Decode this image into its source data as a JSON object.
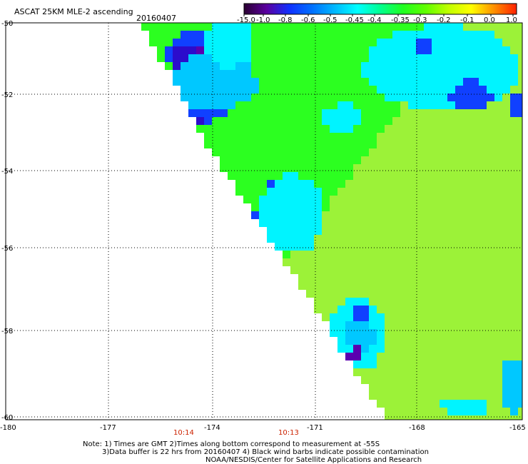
{
  "header": {
    "product": "ASCAT 25KM MLE-2 ascending",
    "date": "20160407"
  },
  "colorbar": {
    "labels": [
      "-15.0",
      "-1.0",
      "-0.8",
      "-0.6",
      "-0.5",
      "-0.45",
      "-0.4",
      "-0.35",
      "-0.3",
      "-0.2",
      "-0.1",
      "0.0",
      "1.0"
    ],
    "colors": [
      "#2a0030",
      "#5a00a0",
      "#1030ff",
      "#0070ff",
      "#00b8ff",
      "#00ffff",
      "#00ff90",
      "#20ff20",
      "#60ff00",
      "#c0ff00",
      "#ffff00",
      "#ff9000",
      "#ff2000"
    ]
  },
  "map": {
    "lat_labels": [
      "-50",
      "-52",
      "-54",
      "-56",
      "-58",
      "-60"
    ],
    "lon_labels": [
      "-180",
      "-177",
      "-174",
      "-171",
      "-168",
      "-165"
    ],
    "pass_times": [
      "10:14",
      "10:13"
    ],
    "palette": {
      "sea_green": "#2cff20",
      "light_green": "#9cf238",
      "cyan": "#00f4ff",
      "aqua": "#00ffd0",
      "sky": "#00c8ff",
      "blue": "#1040ff",
      "dark_blue": "#2c0ccc",
      "purple": "#5a00b0"
    }
  },
  "notes": [
    "Note: 1) Times are GMT 2)Times along bottom correspond to measurement at -55S",
    "3)Data buffer is 22 hrs from 20160407 4) Black wind barbs indicate possible contamination",
    "NOAA/NESDIS/Center for Satellite Applications and Research"
  ]
}
